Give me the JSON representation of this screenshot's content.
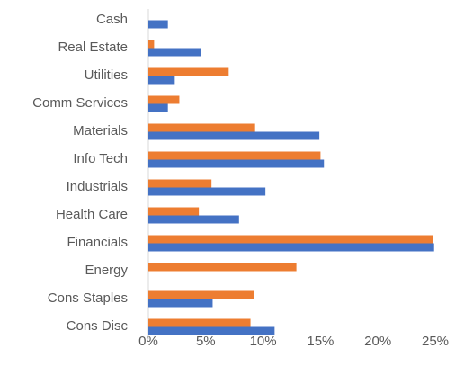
{
  "chart_data": {
    "type": "hbar",
    "categories": [
      "Cash",
      "Real Estate",
      "Utilities",
      "Comm Services",
      "Materials",
      "Info Tech",
      "Industrials",
      "Health Care",
      "Financials",
      "Energy",
      "Cons Staples",
      "Cons Disc"
    ],
    "series": [
      {
        "color": "#ed7d31",
        "values": [
          null,
          0.5,
          7.0,
          2.7,
          9.3,
          15.0,
          5.5,
          4.4,
          24.8,
          12.9,
          9.2,
          8.9
        ]
      },
      {
        "color": "#4472c4",
        "values": [
          1.7,
          4.6,
          2.3,
          1.7,
          14.9,
          15.3,
          10.2,
          7.9,
          24.9,
          null,
          5.6,
          11.0
        ]
      }
    ],
    "xlim": [
      0,
      25
    ],
    "xticks": [
      {
        "value": 0,
        "label": "0%"
      },
      {
        "value": 5,
        "label": "5%"
      },
      {
        "value": 10,
        "label": "10%"
      },
      {
        "value": 15,
        "label": "15%"
      },
      {
        "value": 20,
        "label": "20%"
      },
      {
        "value": 25,
        "label": "25%"
      }
    ]
  }
}
